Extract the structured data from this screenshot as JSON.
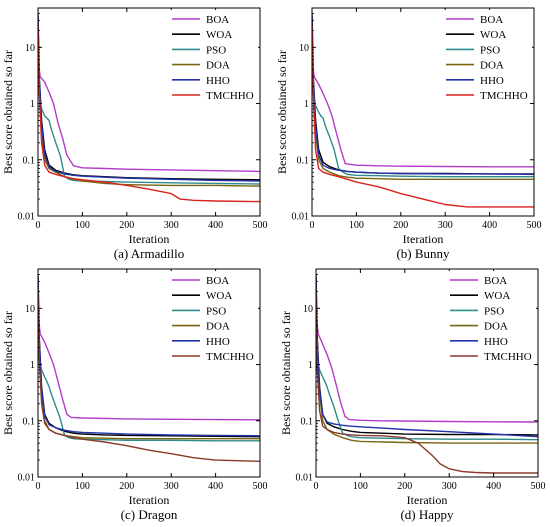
{
  "chart_data": [
    {
      "type": "line",
      "caption": "(a) Armadillo",
      "xlabel": "Iteration",
      "ylabel": "Best score obtained so far",
      "xlim": [
        0,
        500
      ],
      "ylim": [
        0.01,
        50
      ],
      "yscale": "log",
      "xticks": [
        "0",
        "100",
        "200",
        "300",
        "400",
        "500"
      ],
      "yticks": [
        "0.01",
        "0.1",
        "1",
        "10"
      ],
      "legend_position": "top-right",
      "series": [
        {
          "name": "BOA",
          "color": "#b23cc8",
          "x": [
            0,
            5,
            15,
            25,
            35,
            45,
            55,
            65,
            80,
            100,
            150,
            200,
            300,
            400,
            500
          ],
          "y": [
            6.0,
            3.0,
            2.4,
            1.6,
            1.0,
            0.45,
            0.25,
            0.12,
            0.078,
            0.072,
            0.07,
            0.068,
            0.066,
            0.064,
            0.062
          ]
        },
        {
          "name": "WOA",
          "color": "#000000",
          "x": [
            0,
            3,
            8,
            15,
            25,
            40,
            60,
            80,
            100,
            150,
            200,
            300,
            400,
            500
          ],
          "y": [
            40,
            3.0,
            0.5,
            0.15,
            0.08,
            0.065,
            0.058,
            0.054,
            0.052,
            0.05,
            0.048,
            0.046,
            0.045,
            0.044
          ]
        },
        {
          "name": "PSO",
          "color": "#2e8b8b",
          "x": [
            0,
            3,
            8,
            15,
            20,
            25,
            30,
            40,
            50,
            60,
            70,
            80,
            100,
            150,
            200,
            300,
            400,
            500
          ],
          "y": [
            20,
            1.4,
            0.8,
            0.6,
            0.55,
            0.5,
            0.35,
            0.2,
            0.12,
            0.05,
            0.045,
            0.043,
            0.042,
            0.041,
            0.04,
            0.039,
            0.038,
            0.037
          ]
        },
        {
          "name": "DOA",
          "color": "#7a6510",
          "x": [
            0,
            3,
            8,
            15,
            25,
            40,
            60,
            80,
            100,
            150,
            200,
            300,
            400,
            500
          ],
          "y": [
            30,
            2.0,
            0.3,
            0.1,
            0.07,
            0.06,
            0.05,
            0.045,
            0.042,
            0.038,
            0.036,
            0.035,
            0.035,
            0.034
          ]
        },
        {
          "name": "HHO",
          "color": "#2233aa",
          "x": [
            0,
            3,
            8,
            15,
            25,
            40,
            60,
            80,
            100,
            150,
            200,
            300,
            400,
            500
          ],
          "y": [
            35,
            2.5,
            0.4,
            0.12,
            0.075,
            0.062,
            0.056,
            0.053,
            0.051,
            0.049,
            0.047,
            0.045,
            0.043,
            0.042
          ]
        },
        {
          "name": "TMCHHO",
          "color": "#d8221d",
          "x": [
            0,
            3,
            8,
            15,
            25,
            40,
            60,
            80,
            100,
            150,
            200,
            250,
            300,
            320,
            350,
            400,
            500
          ],
          "y": [
            25,
            1.5,
            0.2,
            0.08,
            0.06,
            0.055,
            0.05,
            0.046,
            0.044,
            0.04,
            0.035,
            0.03,
            0.025,
            0.02,
            0.019,
            0.0185,
            0.018
          ]
        }
      ]
    },
    {
      "type": "line",
      "caption": "(b) Bunny",
      "xlabel": "Iteration",
      "ylabel": "Best score obtained so far",
      "xlim": [
        0,
        500
      ],
      "ylim": [
        0.01,
        50
      ],
      "yscale": "log",
      "xticks": [
        "0",
        "100",
        "200",
        "300",
        "400",
        "500"
      ],
      "yticks": [
        "0.01",
        "0.1",
        "1",
        "10"
      ],
      "legend_position": "top-right",
      "series": [
        {
          "name": "BOA",
          "color": "#b23cc8",
          "x": [
            0,
            5,
            15,
            25,
            35,
            45,
            55,
            65,
            75,
            100,
            150,
            200,
            300,
            400,
            500
          ],
          "y": [
            6.0,
            3.0,
            2.2,
            1.5,
            1.0,
            0.6,
            0.3,
            0.15,
            0.085,
            0.08,
            0.078,
            0.077,
            0.076,
            0.075,
            0.075
          ]
        },
        {
          "name": "WOA",
          "color": "#000000",
          "x": [
            0,
            3,
            8,
            15,
            25,
            40,
            60,
            80,
            100,
            150,
            200,
            300,
            400,
            500
          ],
          "y": [
            40,
            3.0,
            0.5,
            0.15,
            0.09,
            0.075,
            0.066,
            0.062,
            0.06,
            0.058,
            0.057,
            0.057,
            0.056,
            0.056
          ]
        },
        {
          "name": "PSO",
          "color": "#2e8b8b",
          "x": [
            0,
            3,
            8,
            15,
            20,
            25,
            30,
            40,
            50,
            60,
            70,
            80,
            100,
            150,
            200,
            300,
            400,
            500
          ],
          "y": [
            20,
            1.5,
            0.9,
            0.7,
            0.6,
            0.55,
            0.4,
            0.25,
            0.15,
            0.07,
            0.06,
            0.055,
            0.053,
            0.052,
            0.051,
            0.05,
            0.05,
            0.05
          ]
        },
        {
          "name": "DOA",
          "color": "#7a6510",
          "x": [
            0,
            3,
            8,
            15,
            25,
            40,
            60,
            80,
            100,
            150,
            200,
            300,
            400,
            500
          ],
          "y": [
            30,
            2.0,
            0.3,
            0.1,
            0.07,
            0.06,
            0.052,
            0.049,
            0.047,
            0.046,
            0.045,
            0.045,
            0.045,
            0.045
          ]
        },
        {
          "name": "HHO",
          "color": "#2233aa",
          "x": [
            0,
            3,
            8,
            15,
            25,
            40,
            60,
            80,
            100,
            150,
            200,
            300,
            400,
            500
          ],
          "y": [
            35,
            2.5,
            0.4,
            0.12,
            0.08,
            0.07,
            0.065,
            0.062,
            0.06,
            0.058,
            0.057,
            0.056,
            0.056,
            0.055
          ]
        },
        {
          "name": "TMCHHO",
          "color": "#d8221d",
          "x": [
            0,
            3,
            8,
            15,
            25,
            40,
            60,
            80,
            100,
            150,
            200,
            250,
            300,
            350,
            400,
            500
          ],
          "y": [
            25,
            1.5,
            0.15,
            0.07,
            0.06,
            0.055,
            0.05,
            0.045,
            0.04,
            0.033,
            0.025,
            0.02,
            0.016,
            0.0145,
            0.0145,
            0.0145
          ]
        }
      ]
    },
    {
      "type": "line",
      "caption": "(c) Dragon",
      "xlabel": "Iteration",
      "ylabel": "Best score obtained so far",
      "xlim": [
        0,
        500
      ],
      "ylim": [
        0.01,
        50
      ],
      "yscale": "log",
      "xticks": [
        "0",
        "100",
        "200",
        "300",
        "400",
        "500"
      ],
      "yticks": [
        "0.01",
        "0.1",
        "1",
        "10"
      ],
      "legend_position": "top-right",
      "series": [
        {
          "name": "BOA",
          "color": "#b23cc8",
          "x": [
            0,
            5,
            15,
            25,
            35,
            45,
            55,
            65,
            75,
            100,
            150,
            200,
            300,
            400,
            500
          ],
          "y": [
            8.0,
            3.5,
            2.5,
            1.6,
            1.0,
            0.5,
            0.25,
            0.13,
            0.115,
            0.112,
            0.11,
            0.108,
            0.106,
            0.105,
            0.104
          ]
        },
        {
          "name": "WOA",
          "color": "#000000",
          "x": [
            0,
            3,
            8,
            15,
            25,
            40,
            60,
            80,
            100,
            150,
            200,
            300,
            400,
            500
          ],
          "y": [
            40,
            3.0,
            0.4,
            0.13,
            0.09,
            0.075,
            0.065,
            0.06,
            0.058,
            0.056,
            0.055,
            0.054,
            0.053,
            0.052
          ]
        },
        {
          "name": "PSO",
          "color": "#2e8b8b",
          "x": [
            0,
            3,
            8,
            15,
            20,
            25,
            30,
            40,
            50,
            60,
            70,
            80,
            100,
            150,
            200,
            300,
            400,
            500
          ],
          "y": [
            20,
            1.2,
            0.8,
            0.6,
            0.5,
            0.4,
            0.3,
            0.18,
            0.11,
            0.055,
            0.05,
            0.048,
            0.047,
            0.046,
            0.045,
            0.045,
            0.044,
            0.044
          ]
        },
        {
          "name": "DOA",
          "color": "#7a6510",
          "x": [
            0,
            3,
            8,
            15,
            25,
            40,
            60,
            80,
            100,
            150,
            200,
            300,
            400,
            500
          ],
          "y": [
            30,
            1.5,
            0.25,
            0.1,
            0.07,
            0.06,
            0.055,
            0.052,
            0.05,
            0.049,
            0.048,
            0.048,
            0.048,
            0.048
          ]
        },
        {
          "name": "HHO",
          "color": "#2233aa",
          "x": [
            0,
            3,
            8,
            15,
            25,
            40,
            60,
            80,
            100,
            150,
            200,
            300,
            400,
            500
          ],
          "y": [
            35,
            2.5,
            0.35,
            0.12,
            0.085,
            0.075,
            0.068,
            0.064,
            0.062,
            0.06,
            0.058,
            0.056,
            0.055,
            0.054
          ]
        },
        {
          "name": "TMCHHO",
          "color": "#8b3a2a",
          "x": [
            0,
            3,
            8,
            15,
            25,
            40,
            60,
            80,
            100,
            150,
            200,
            250,
            300,
            350,
            400,
            450,
            500
          ],
          "y": [
            25,
            1.2,
            0.2,
            0.09,
            0.07,
            0.06,
            0.055,
            0.05,
            0.047,
            0.042,
            0.036,
            0.03,
            0.026,
            0.022,
            0.02,
            0.0195,
            0.019
          ]
        }
      ]
    },
    {
      "type": "line",
      "caption": "(d) Happy",
      "xlabel": "Iteration",
      "ylabel": "Best score obtained so far",
      "xlim": [
        0,
        500
      ],
      "ylim": [
        0.01,
        50
      ],
      "yscale": "log",
      "xticks": [
        "0",
        "100",
        "200",
        "300",
        "400",
        "500"
      ],
      "yticks": [
        "0.01",
        "0.1",
        "1",
        "10"
      ],
      "legend_position": "top-right",
      "series": [
        {
          "name": "BOA",
          "color": "#b23cc8",
          "x": [
            0,
            5,
            15,
            25,
            35,
            45,
            55,
            65,
            75,
            100,
            150,
            200,
            300,
            400,
            500
          ],
          "y": [
            8.0,
            3.5,
            2.3,
            1.5,
            0.9,
            0.45,
            0.22,
            0.12,
            0.105,
            0.102,
            0.1,
            0.099,
            0.097,
            0.096,
            0.095
          ]
        },
        {
          "name": "WOA",
          "color": "#000000",
          "x": [
            0,
            3,
            8,
            15,
            25,
            40,
            60,
            80,
            100,
            150,
            200,
            300,
            400,
            500
          ],
          "y": [
            40,
            3.0,
            0.4,
            0.13,
            0.09,
            0.078,
            0.07,
            0.065,
            0.062,
            0.06,
            0.058,
            0.057,
            0.057,
            0.056
          ]
        },
        {
          "name": "PSO",
          "color": "#2e8b8b",
          "x": [
            0,
            3,
            8,
            15,
            20,
            25,
            30,
            40,
            50,
            60,
            70,
            80,
            100,
            150,
            200,
            300,
            400,
            500
          ],
          "y": [
            20,
            1.2,
            0.8,
            0.6,
            0.5,
            0.4,
            0.3,
            0.18,
            0.1,
            0.06,
            0.055,
            0.052,
            0.05,
            0.049,
            0.048,
            0.047,
            0.047,
            0.046
          ]
        },
        {
          "name": "DOA",
          "color": "#7a6510",
          "x": [
            0,
            3,
            8,
            15,
            25,
            40,
            60,
            80,
            100,
            150,
            200,
            300,
            400,
            500
          ],
          "y": [
            30,
            0.9,
            0.3,
            0.1,
            0.07,
            0.058,
            0.05,
            0.045,
            0.043,
            0.042,
            0.041,
            0.04,
            0.04,
            0.04
          ]
        },
        {
          "name": "HHO",
          "color": "#2233aa",
          "x": [
            0,
            3,
            8,
            15,
            25,
            40,
            60,
            80,
            100,
            150,
            200,
            300,
            400,
            500
          ],
          "y": [
            35,
            2.5,
            0.35,
            0.13,
            0.095,
            0.088,
            0.083,
            0.08,
            0.078,
            0.074,
            0.07,
            0.064,
            0.058,
            0.052
          ]
        },
        {
          "name": "TMCHHO",
          "color": "#8b3a2a",
          "x": [
            0,
            3,
            8,
            15,
            25,
            40,
            60,
            80,
            100,
            150,
            200,
            230,
            260,
            280,
            300,
            330,
            360,
            400,
            500
          ],
          "y": [
            25,
            0.8,
            0.15,
            0.08,
            0.07,
            0.062,
            0.058,
            0.056,
            0.055,
            0.054,
            0.05,
            0.04,
            0.025,
            0.017,
            0.014,
            0.0125,
            0.012,
            0.0118,
            0.0118
          ]
        }
      ]
    }
  ]
}
